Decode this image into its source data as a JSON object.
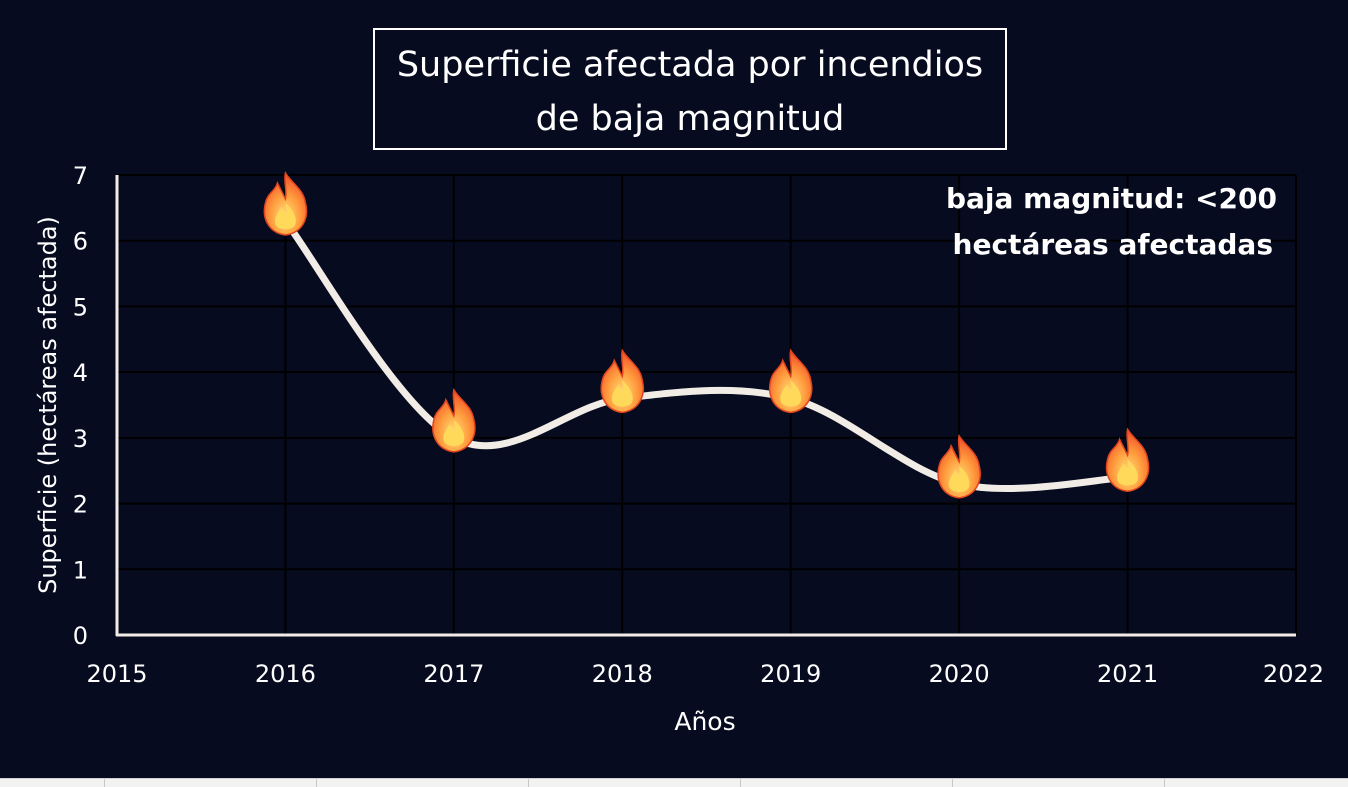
{
  "chart_data": {
    "type": "line",
    "title_lines": [
      "Superficie afectada por incendios",
      "de baja magnitud"
    ],
    "xlabel": "Años",
    "ylabel": "Superficie (hectáreas afectada)",
    "xlim": [
      2015,
      2022
    ],
    "ylim": [
      0,
      7
    ],
    "x_ticks": [
      2015,
      2016,
      2017,
      2018,
      2019,
      2020,
      2021,
      2022
    ],
    "y_ticks": [
      0,
      1,
      2,
      3,
      4,
      5,
      6,
      7
    ],
    "x": [
      2016,
      2017,
      2018,
      2019,
      2020,
      2021
    ],
    "values": [
      6.3,
      3.0,
      3.6,
      3.6,
      2.3,
      2.4
    ],
    "marker": "fire-icon",
    "line_color": "#f1ede6",
    "grid": true,
    "annotation_lines": [
      "baja magnitud: <200",
      "hectáreas afectadas"
    ],
    "annotation_placement": "top-right"
  },
  "colors": {
    "background": "#070b1f",
    "text": "#ffffff",
    "grid": "#000000"
  }
}
